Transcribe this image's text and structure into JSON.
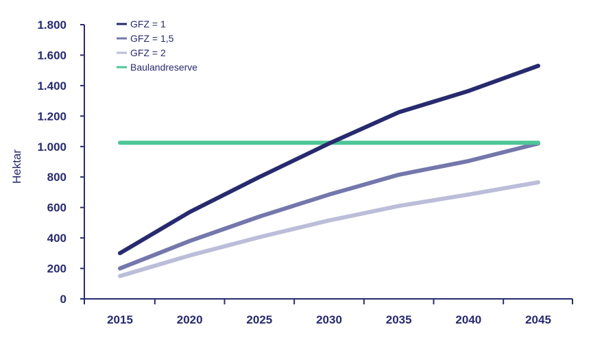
{
  "chart_data": {
    "type": "line",
    "title": "",
    "xlabel": "",
    "ylabel": "Hektar",
    "x": [
      2015,
      2020,
      2025,
      2030,
      2035,
      2040,
      2045
    ],
    "x_tick_labels": [
      "2015",
      "2020",
      "2025",
      "2030",
      "2035",
      "2040",
      "2045"
    ],
    "ylim": [
      0,
      1800
    ],
    "y_ticks": [
      0,
      200,
      400,
      600,
      800,
      1000,
      1200,
      1400,
      1600,
      1800
    ],
    "y_tick_labels": [
      "0",
      "200",
      "400",
      "600",
      "800",
      "1.000",
      "1.200",
      "1.400",
      "1.600",
      "1.800"
    ],
    "grid": false,
    "legend_position": "top-left",
    "series": [
      {
        "name": "GFZ = 1",
        "color": "#272a6e",
        "values": [
          300,
          570,
          800,
          1020,
          1225,
          1365,
          1530
        ]
      },
      {
        "name": "GFZ = 1,5",
        "color": "#7377ab",
        "values": [
          200,
          380,
          540,
          685,
          815,
          905,
          1020
        ]
      },
      {
        "name": "GFZ = 2",
        "color": "#bbbdd9",
        "values": [
          150,
          285,
          405,
          515,
          610,
          685,
          765
        ]
      },
      {
        "name": "Baulandreserve",
        "color": "#4ec597",
        "values": [
          1025,
          1025,
          1025,
          1025,
          1025,
          1025,
          1025
        ]
      }
    ]
  }
}
